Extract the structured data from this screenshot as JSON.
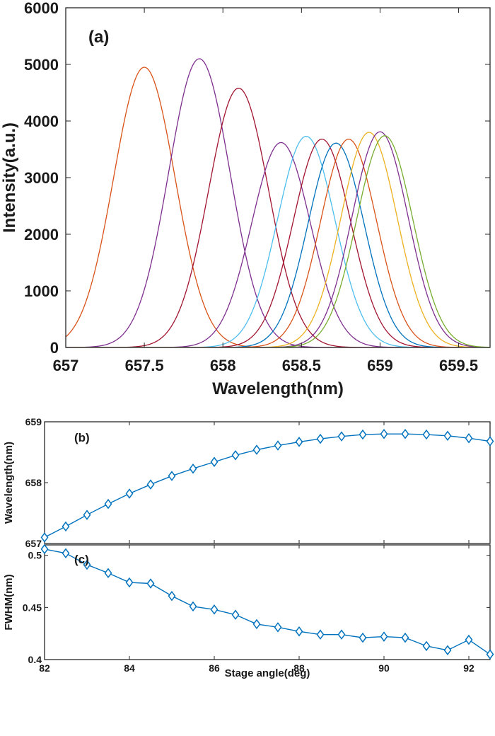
{
  "chart_data": [
    {
      "type": "line",
      "panel_label": "(a)",
      "xlabel": "Wavelength(nm)",
      "ylabel": "Intensity(a.u.)",
      "xlim": [
        657,
        659.7
      ],
      "ylim": [
        0,
        6000
      ],
      "xticks": [
        657,
        657.5,
        658,
        658.5,
        659,
        659.5
      ],
      "xtick_labels": [
        "657",
        "657.5",
        "658",
        "658.5",
        "659",
        "659.5"
      ],
      "yticks": [
        0,
        1000,
        2000,
        3000,
        4000,
        5000,
        6000
      ],
      "ytick_labels": [
        "0",
        "1000",
        "2000",
        "3000",
        "4000",
        "5000",
        "6000"
      ],
      "grid": false,
      "legend": "none",
      "series": [
        {
          "center": 657.5,
          "peak": 4950,
          "fwhm": 0.46,
          "color": "#d95319"
        },
        {
          "center": 657.85,
          "peak": 5100,
          "fwhm": 0.46,
          "color": "#7e2f8e"
        },
        {
          "center": 658.1,
          "peak": 4580,
          "fwhm": 0.45,
          "color": "#a2142f"
        },
        {
          "center": 658.37,
          "peak": 3620,
          "fwhm": 0.44,
          "color": "#7e2f8e"
        },
        {
          "center": 658.53,
          "peak": 3730,
          "fwhm": 0.43,
          "color": "#4dbeee"
        },
        {
          "center": 658.63,
          "peak": 3680,
          "fwhm": 0.43,
          "color": "#a2142f"
        },
        {
          "center": 658.72,
          "peak": 3610,
          "fwhm": 0.42,
          "color": "#0072bd"
        },
        {
          "center": 658.8,
          "peak": 3680,
          "fwhm": 0.42,
          "color": "#d95319"
        },
        {
          "center": 658.93,
          "peak": 3800,
          "fwhm": 0.42,
          "color": "#edb120"
        },
        {
          "center": 659.0,
          "peak": 3810,
          "fwhm": 0.42,
          "color": "#7e2f8e"
        },
        {
          "center": 659.03,
          "peak": 3740,
          "fwhm": 0.42,
          "color": "#77ac30"
        }
      ]
    },
    {
      "type": "line",
      "panel_label": "(b)",
      "xlabel": "",
      "ylabel": "Wavelength(nm)",
      "xlim": [
        82,
        92.5
      ],
      "ylim": [
        657,
        659
      ],
      "xticks": [
        82,
        84,
        86,
        88,
        90,
        92
      ],
      "yticks": [
        657,
        658,
        659
      ],
      "ytick_labels": [
        "657",
        "658",
        "659"
      ],
      "grid": false,
      "legend": "none",
      "marker": "diamond",
      "color": "#0072bd",
      "x": [
        82,
        82.5,
        83,
        83.5,
        84,
        84.5,
        85,
        85.5,
        86,
        86.5,
        87,
        87.5,
        88,
        88.5,
        89,
        89.5,
        90,
        90.5,
        91,
        91.5,
        92,
        92.5
      ],
      "y": [
        657.1,
        657.28,
        657.47,
        657.65,
        657.82,
        657.97,
        658.11,
        658.23,
        658.34,
        658.45,
        658.54,
        658.61,
        658.67,
        658.72,
        658.76,
        658.79,
        658.8,
        658.8,
        658.79,
        658.77,
        658.73,
        658.68
      ]
    },
    {
      "type": "line",
      "panel_label": "(c)",
      "xlabel": "Stage angle(deg)",
      "ylabel": "FWHM(nm)",
      "xlim": [
        82,
        92.5
      ],
      "ylim": [
        0.4,
        0.51
      ],
      "xticks": [
        82,
        84,
        86,
        88,
        90,
        92
      ],
      "xtick_labels": [
        "82",
        "84",
        "86",
        "88",
        "90",
        "92"
      ],
      "yticks": [
        0.4,
        0.45,
        0.5
      ],
      "ytick_labels": [
        "0.4",
        "0.45",
        "0.5"
      ],
      "grid": false,
      "legend": "none",
      "marker": "diamond",
      "color": "#0072bd",
      "x": [
        82,
        82.5,
        83,
        83.5,
        84,
        84.5,
        85,
        85.5,
        86,
        86.5,
        87,
        87.5,
        88,
        88.5,
        89,
        89.5,
        90,
        90.5,
        91,
        91.5,
        92,
        92.5
      ],
      "y": [
        0.506,
        0.502,
        0.491,
        0.483,
        0.474,
        0.473,
        0.461,
        0.451,
        0.448,
        0.443,
        0.434,
        0.431,
        0.427,
        0.424,
        0.424,
        0.421,
        0.422,
        0.421,
        0.413,
        0.409,
        0.419,
        0.405
      ]
    }
  ]
}
